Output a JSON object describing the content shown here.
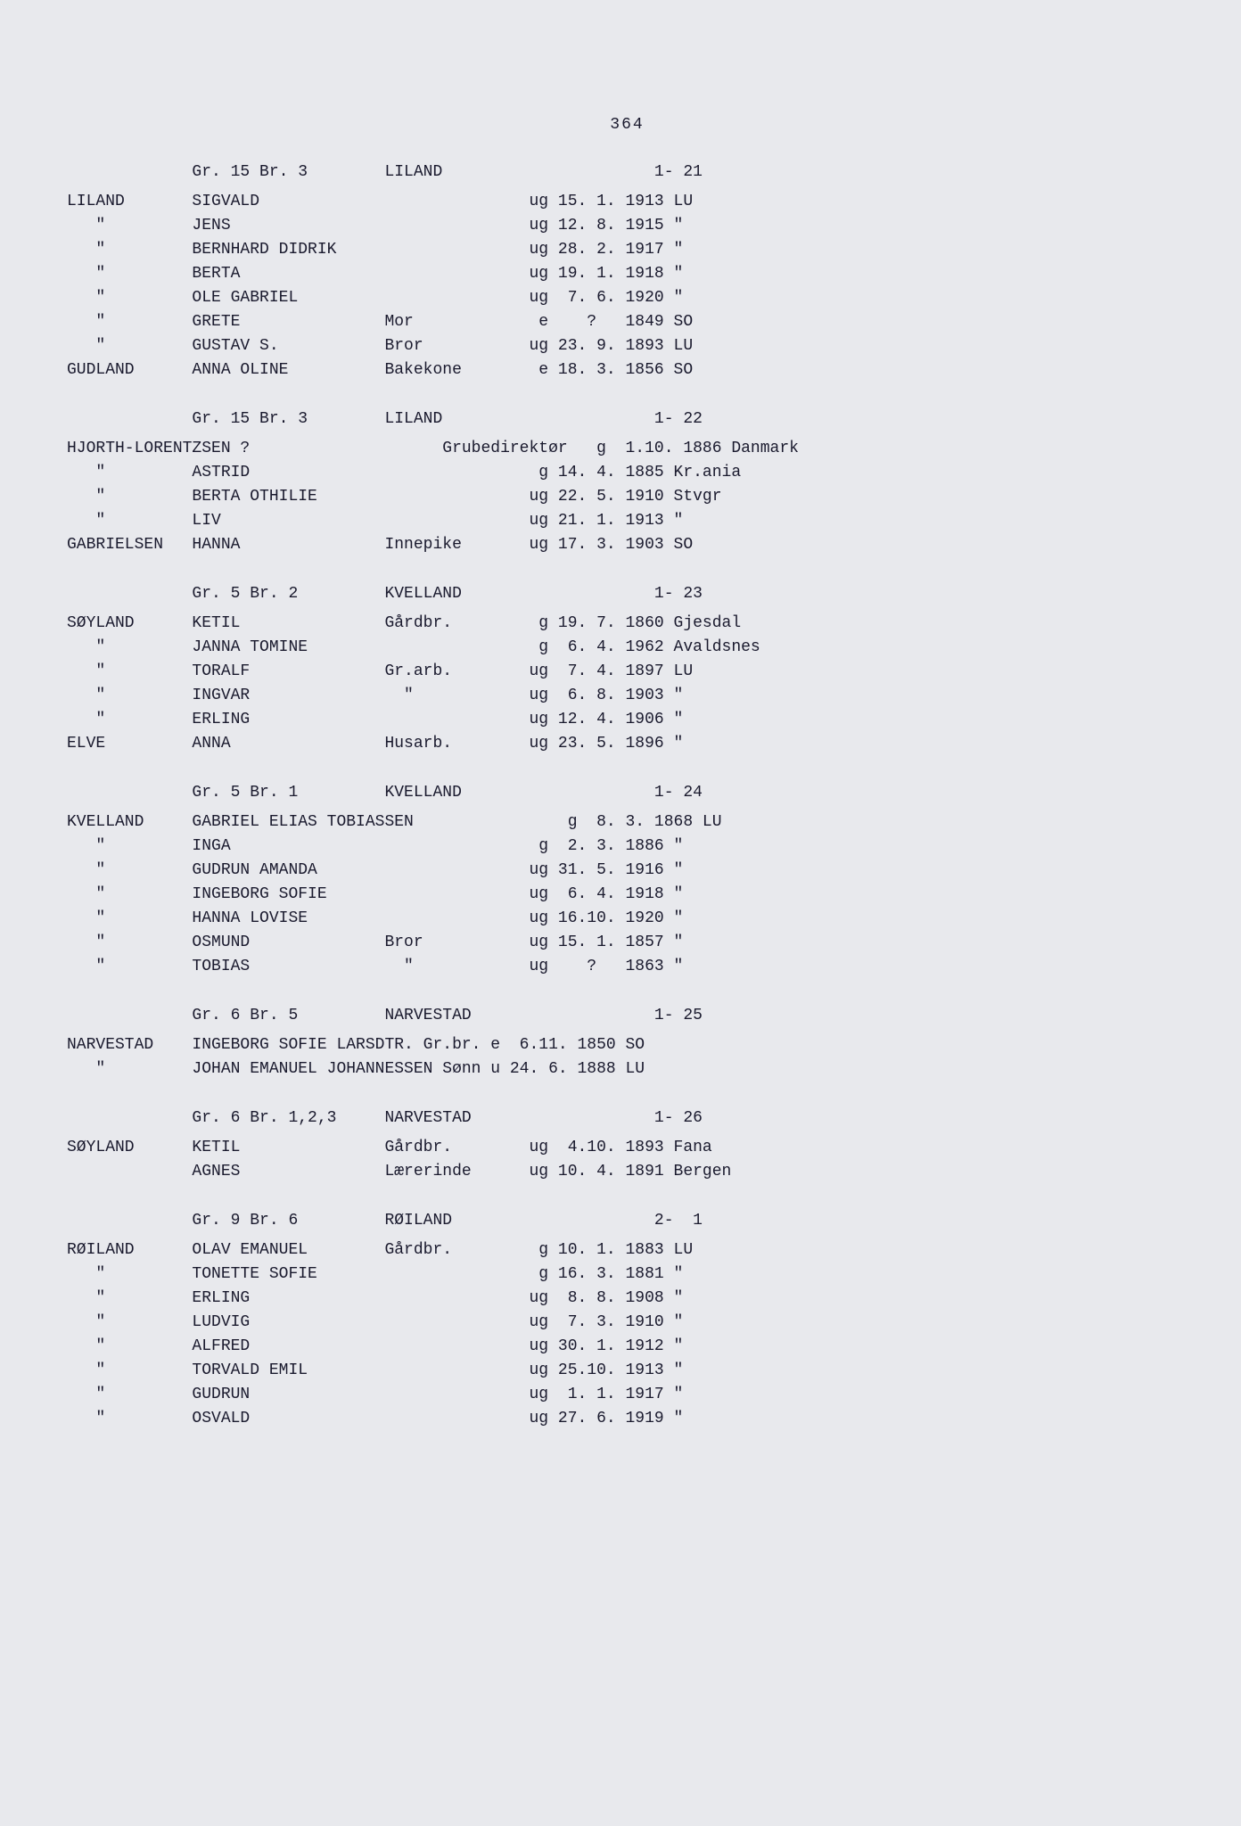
{
  "page_number": "364",
  "font_family": "Courier New",
  "font_size_pt": 14,
  "text_color": "#1a1a2e",
  "page_bg": "#e8e9ed",
  "outer_bg": "#c8cad0",
  "sections": [
    {
      "header": {
        "left": "             Gr. 15 Br. 3",
        "place": "LILAND",
        "range": "1- 21"
      },
      "rows": [
        {
          "surname": "LILAND",
          "given": "SIGVALD",
          "role": "",
          "status": "ug",
          "date": "15. 1.",
          "year": "1913",
          "place": "LU"
        },
        {
          "surname": "\"",
          "given": "JENS",
          "role": "",
          "status": "ug",
          "date": "12. 8.",
          "year": "1915",
          "place": "\""
        },
        {
          "surname": "\"",
          "given": "BERNHARD DIDRIK",
          "role": "",
          "status": "ug",
          "date": "28. 2.",
          "year": "1917",
          "place": "\""
        },
        {
          "surname": "\"",
          "given": "BERTA",
          "role": "",
          "status": "ug",
          "date": "19. 1.",
          "year": "1918",
          "place": "\""
        },
        {
          "surname": "\"",
          "given": "OLE GABRIEL",
          "role": "",
          "status": "ug",
          "date": " 7. 6.",
          "year": "1920",
          "place": "\""
        },
        {
          "surname": "\"",
          "given": "GRETE",
          "role": "Mor",
          "status": "e",
          "date": "  ?  ",
          "year": "1849",
          "place": "SO"
        },
        {
          "surname": "\"",
          "given": "GUSTAV S.",
          "role": "Bror",
          "status": "ug",
          "date": "23. 9.",
          "year": "1893",
          "place": "LU"
        },
        {
          "surname": "GUDLAND",
          "given": "ANNA OLINE",
          "role": "Bakekone",
          "status": "e",
          "date": "18. 3.",
          "year": "1856",
          "place": "SO"
        }
      ]
    },
    {
      "header": {
        "left": "             Gr. 15 Br. 3",
        "place": "LILAND",
        "range": "1- 22"
      },
      "rows": [
        {
          "surname": "HJORTH-LORENTZSEN ?",
          "given": "",
          "role": "Grubedirektør",
          "status": "g",
          "date": " 1.10.",
          "year": "1886",
          "place": "Danmark"
        },
        {
          "surname": "\"",
          "given": "ASTRID",
          "role": "",
          "status": "g",
          "date": "14. 4.",
          "year": "1885",
          "place": "Kr.ania"
        },
        {
          "surname": "\"",
          "given": "BERTA OTHILIE",
          "role": "",
          "status": "ug",
          "date": "22. 5.",
          "year": "1910",
          "place": "Stvgr"
        },
        {
          "surname": "\"",
          "given": "LIV",
          "role": "",
          "status": "ug",
          "date": "21. 1.",
          "year": "1913",
          "place": "\""
        },
        {
          "surname": "GABRIELSEN",
          "given": "HANNA",
          "role": "Innepike",
          "status": "ug",
          "date": "17. 3.",
          "year": "1903",
          "place": "SO"
        }
      ]
    },
    {
      "header": {
        "left": "             Gr. 5 Br. 2",
        "place": "KVELLAND",
        "range": "1- 23"
      },
      "rows": [
        {
          "surname": "SØYLAND",
          "given": "KETIL",
          "role": "Gårdbr.",
          "status": "g",
          "date": "19. 7.",
          "year": "1860",
          "place": "Gjesdal"
        },
        {
          "surname": "\"",
          "given": "JANNA TOMINE",
          "role": "",
          "status": "g",
          "date": " 6. 4.",
          "year": "1962",
          "place": "Avaldsnes"
        },
        {
          "surname": "\"",
          "given": "TORALF",
          "role": "Gr.arb.",
          "status": "ug",
          "date": " 7. 4.",
          "year": "1897",
          "place": "LU"
        },
        {
          "surname": "\"",
          "given": "INGVAR",
          "role": "  \"",
          "status": "ug",
          "date": " 6. 8.",
          "year": "1903",
          "place": "\""
        },
        {
          "surname": "\"",
          "given": "ERLING",
          "role": "",
          "status": "ug",
          "date": "12. 4.",
          "year": "1906",
          "place": "\""
        },
        {
          "surname": "ELVE",
          "given": "ANNA",
          "role": "Husarb.",
          "status": "ug",
          "date": "23. 5.",
          "year": "1896",
          "place": "\""
        }
      ]
    },
    {
      "header": {
        "left": "             Gr. 5 Br. 1",
        "place": "KVELLAND",
        "range": "1- 24"
      },
      "rows": [
        {
          "surname": "KVELLAND",
          "given": "GABRIEL ELIAS TOBIASSEN",
          "role": "",
          "status": "g",
          "date": " 8. 3.",
          "year": "1868",
          "place": "LU"
        },
        {
          "surname": "\"",
          "given": "INGA",
          "role": "",
          "status": "g",
          "date": " 2. 3.",
          "year": "1886",
          "place": "\""
        },
        {
          "surname": "\"",
          "given": "GUDRUN AMANDA",
          "role": "",
          "status": "ug",
          "date": "31. 5.",
          "year": "1916",
          "place": "\""
        },
        {
          "surname": "\"",
          "given": "INGEBORG SOFIE",
          "role": "",
          "status": "ug",
          "date": " 6. 4.",
          "year": "1918",
          "place": "\""
        },
        {
          "surname": "\"",
          "given": "HANNA LOVISE",
          "role": "",
          "status": "ug",
          "date": "16.10.",
          "year": "1920",
          "place": "\""
        },
        {
          "surname": "\"",
          "given": "OSMUND",
          "role": "Bror",
          "status": "ug",
          "date": "15. 1.",
          "year": "1857",
          "place": "\""
        },
        {
          "surname": "\"",
          "given": "TOBIAS",
          "role": "  \"",
          "status": "ug",
          "date": "  ?  ",
          "year": "1863",
          "place": "\""
        }
      ]
    },
    {
      "header": {
        "left": "             Gr. 6 Br. 5",
        "place": "NARVESTAD",
        "range": "1- 25"
      },
      "special_rows": [
        "NARVESTAD    INGEBORG SOFIE LARSDTR. Gr.br. e  6.11. 1850 SO",
        "   \"         JOHAN EMANUEL JOHANNESSEN Sønn u 24. 6. 1888 LU"
      ]
    },
    {
      "header": {
        "left": "             Gr. 6 Br. 1,2,3",
        "place": "NARVESTAD",
        "range": "1- 26"
      },
      "rows": [
        {
          "surname": "SØYLAND",
          "given": "KETIL",
          "role": "Gårdbr.",
          "status": "ug",
          "date": " 4.10.",
          "year": "1893",
          "place": "Fana"
        },
        {
          "surname": "",
          "given": "AGNES",
          "role": "Lærerinde",
          "status": "ug",
          "date": "10. 4.",
          "year": "1891",
          "place": "Bergen"
        }
      ]
    },
    {
      "header": {
        "left": "             Gr. 9 Br. 6",
        "place": "RØILAND",
        "range": "2-  1"
      },
      "rows": [
        {
          "surname": "RØILAND",
          "given": "OLAV EMANUEL",
          "role": "Gårdbr.",
          "status": "g",
          "date": "10. 1.",
          "year": "1883",
          "place": "LU"
        },
        {
          "surname": "\"",
          "given": "TONETTE SOFIE",
          "role": "",
          "status": "g",
          "date": "16. 3.",
          "year": "1881",
          "place": "\""
        },
        {
          "surname": "\"",
          "given": "ERLING",
          "role": "",
          "status": "ug",
          "date": " 8. 8.",
          "year": "1908",
          "place": "\""
        },
        {
          "surname": "\"",
          "given": "LUDVIG",
          "role": "",
          "status": "ug",
          "date": " 7. 3.",
          "year": "1910",
          "place": "\""
        },
        {
          "surname": "\"",
          "given": "ALFRED",
          "role": "",
          "status": "ug",
          "date": "30. 1.",
          "year": "1912",
          "place": "\""
        },
        {
          "surname": "\"",
          "given": "TORVALD EMIL",
          "role": "",
          "status": "ug",
          "date": "25.10.",
          "year": "1913",
          "place": "\""
        },
        {
          "surname": "\"",
          "given": "GUDRUN",
          "role": "",
          "status": "ug",
          "date": " 1. 1.",
          "year": "1917",
          "place": "\""
        },
        {
          "surname": "\"",
          "given": "OSVALD",
          "role": "",
          "status": "ug",
          "date": "27. 6.",
          "year": "1919",
          "place": "\""
        }
      ]
    }
  ],
  "columns": {
    "surname_w": 13,
    "given_w": 20,
    "role_w": 14,
    "status_w": 3,
    "date_w": 7,
    "year_w": 5,
    "place_w": 10,
    "header_left_w": 33,
    "header_place_w": 27,
    "header_range_w": 6
  }
}
